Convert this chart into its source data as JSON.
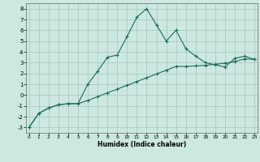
{
  "xlabel": "Humidex (Indice chaleur)",
  "bg_color": "#cce8e0",
  "grid_color": "#aaccc4",
  "line_color": "#1a6b5a",
  "x_curve": [
    0,
    1,
    2,
    3,
    4,
    5,
    6,
    7,
    8,
    9,
    10,
    11,
    12,
    13,
    14,
    15,
    16,
    17,
    18,
    19,
    20,
    21,
    22,
    23
  ],
  "y_curve": [
    -3.0,
    -1.7,
    -1.2,
    -0.9,
    -0.8,
    -0.8,
    1.0,
    2.2,
    3.5,
    3.7,
    5.4,
    7.2,
    8.0,
    6.5,
    5.0,
    6.0,
    4.3,
    3.6,
    3.0,
    2.8,
    2.6,
    3.4,
    3.6,
    3.3
  ],
  "x_line": [
    0,
    1,
    2,
    3,
    4,
    5,
    6,
    7,
    8,
    9,
    10,
    11,
    12,
    13,
    14,
    15,
    16,
    17,
    18,
    19,
    20,
    21,
    22,
    23
  ],
  "y_line": [
    -3.0,
    -1.7,
    -1.2,
    -0.9,
    -0.8,
    -0.8,
    -0.5,
    -0.15,
    0.2,
    0.55,
    0.9,
    1.25,
    1.6,
    1.95,
    2.3,
    2.65,
    2.65,
    2.7,
    2.75,
    2.85,
    2.95,
    3.1,
    3.35,
    3.3
  ],
  "ylim": [
    -3.5,
    8.5
  ],
  "xlim": [
    -0.3,
    23.3
  ],
  "yticks": [
    -3,
    -2,
    -1,
    0,
    1,
    2,
    3,
    4,
    5,
    6,
    7,
    8
  ],
  "xticks": [
    0,
    1,
    2,
    3,
    4,
    5,
    6,
    7,
    8,
    9,
    10,
    11,
    12,
    13,
    14,
    15,
    16,
    17,
    18,
    19,
    20,
    21,
    22,
    23
  ],
  "xlabel_fontsize": 5.5,
  "xlabel_fontweight": "bold",
  "ytick_fontsize": 5.0,
  "xtick_fontsize": 4.2
}
